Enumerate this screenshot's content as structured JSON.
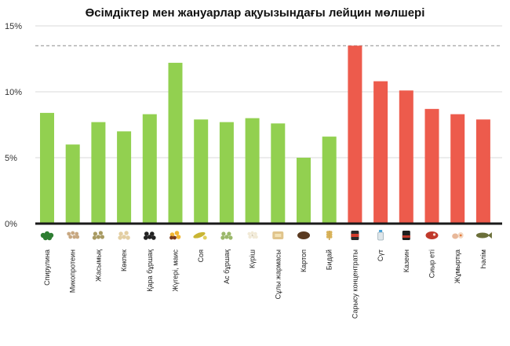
{
  "chart_data": {
    "type": "bar",
    "title": "Өсімдіктер мен жануарлар ақуызындағы лейцин мөлшері",
    "xlabel": "",
    "ylabel": "",
    "ylim": [
      0,
      15
    ],
    "yticks": [
      "0%",
      "5%",
      "10%",
      "15%"
    ],
    "reference_line": 13.5,
    "grid": true,
    "colors": {
      "plant": "#92d050",
      "animal": "#ed5b4c",
      "baseline": "#1a1a1a",
      "grid": "#d9d9d9"
    },
    "categories": [
      "Спирулина",
      "Микопротеин",
      "Жасымық",
      "Көкпек",
      "Қара бұршақ",
      "Жүгері, маис",
      "Соя",
      "Ас бұршақ",
      "Күріш",
      "Сұлы жармасы",
      "Картоп",
      "Бидай",
      "Сарысу концентраты",
      "Сүт",
      "Казеин",
      "Сиыр еті",
      "Жұмыртқа",
      "Һәлім"
    ],
    "values": [
      8.4,
      6.0,
      7.7,
      7.0,
      8.3,
      12.2,
      7.9,
      7.7,
      8.0,
      7.6,
      5.0,
      6.6,
      13.5,
      10.8,
      10.1,
      8.7,
      8.3,
      7.9
    ],
    "groups": [
      "plant",
      "plant",
      "plant",
      "plant",
      "plant",
      "plant",
      "plant",
      "plant",
      "plant",
      "plant",
      "plant",
      "plant",
      "animal",
      "animal",
      "animal",
      "animal",
      "animal",
      "animal"
    ],
    "icons": [
      "spirulina-icon",
      "mycoprotein-icon",
      "lentils-icon",
      "chickpea-icon",
      "black-beans-icon",
      "corn-icon",
      "soy-icon",
      "peas-icon",
      "rice-icon",
      "oats-icon",
      "potato-icon",
      "wheat-icon",
      "whey-icon",
      "milk-icon",
      "casein-icon",
      "beef-icon",
      "egg-icon",
      "fish-icon"
    ]
  }
}
